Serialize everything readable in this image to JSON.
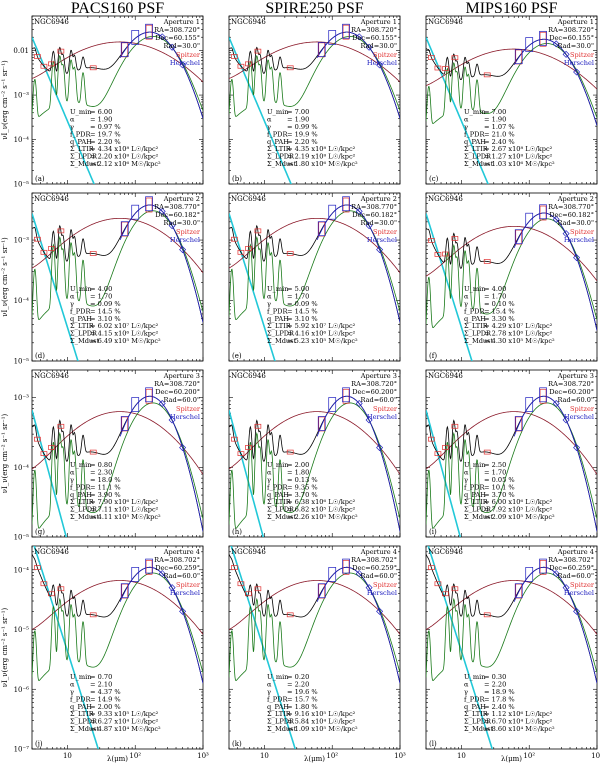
{
  "columns": [
    "PACS160 PSF",
    "SPIRE250 PSF",
    "MIPS160 PSF"
  ],
  "ylabel": "νI_ν(erg cm⁻² s⁻¹ sr⁻¹)",
  "xlabel": "λ(μm)",
  "legend": {
    "spitzer": "Spitzer",
    "herschel": "Herschel"
  },
  "colors": {
    "total": "#000000",
    "dust_model": "#1a7a1a",
    "stars": "#8b1a2a",
    "cyan": "#22c8d8",
    "spitzer": "#e03030",
    "herschel": "#2020c0"
  },
  "chart_data": {
    "type": "line",
    "galaxy": "NGC6946",
    "xscale": "log",
    "yscale": "log",
    "xlim": [
      3,
      1000
    ],
    "xticks": [
      "10",
      "10²",
      "10³"
    ],
    "ylim_rows": [
      [
        1e-05,
        0.06
      ],
      [
        1e-05,
        0.006
      ],
      [
        1e-05,
        0.0025
      ],
      [
        1e-07,
        0.00025
      ]
    ],
    "yticks_rows": [
      [
        "0.01",
        "10⁻³",
        "10⁻⁴",
        "10⁻⁵"
      ],
      [
        "10⁻³",
        "10⁻⁴",
        "10⁻⁵"
      ],
      [
        "10⁻³",
        "10⁻⁴",
        "10⁻⁵"
      ],
      [
        "10⁻⁴",
        "10⁻⁵",
        "10⁻⁶",
        "10⁻⁷"
      ]
    ],
    "stellar_peak": [
      0.018,
      0.0025,
      0.0006,
      0.0003
    ],
    "panels": [
      {
        "label": "(a)",
        "aperture": "Aperture 1",
        "ra": "RA=308.720°",
        "dec": "Dec=60.155°",
        "rad": "Rad=30.0\"",
        "params": [
          [
            "U_min",
            "6.00"
          ],
          [
            "α",
            "1.90"
          ],
          [
            "γ",
            "0.97 %"
          ],
          [
            "f_PDR",
            "19.7 %"
          ],
          [
            "q_PAH",
            "2.20 %"
          ],
          [
            "Σ_LTIR",
            "4.34 x10⁸ L☉/kpc²"
          ],
          [
            "Σ_LPDR",
            "2.20 x10⁸ L☉/kpc²"
          ],
          [
            "Σ_Mdust",
            "2.12 x10⁶ M☉/kpc²"
          ]
        ],
        "peak": 0.026
      },
      {
        "label": "(b)",
        "aperture": "Aperture 1",
        "ra": "RA=308.720°",
        "dec": "Dec=60.155°",
        "rad": "Rad=30.0\"",
        "params": [
          [
            "U_min",
            "7.00"
          ],
          [
            "α",
            "1.90"
          ],
          [
            "γ",
            "0.99 %"
          ],
          [
            "f_PDR",
            "19.9 %"
          ],
          [
            "q_PAH",
            "2.20 %"
          ],
          [
            "Σ_LTIR",
            "4.35 x10⁸ L☉/kpc²"
          ],
          [
            "Σ_LPDR",
            "2.19 x10⁸ L☉/kpc²"
          ],
          [
            "Σ_Mdust",
            "1.80 x10⁶ M☉/kpc²"
          ]
        ],
        "peak": 0.026
      },
      {
        "label": "(c)",
        "aperture": "Aperture 1",
        "ra": "RA=308.720°",
        "dec": "Dec=60.155°",
        "rad": "Rad=30.0\"",
        "params": [
          [
            "U_min",
            "7.00"
          ],
          [
            "α",
            "1.90"
          ],
          [
            "γ",
            "1.07 %"
          ],
          [
            "f_PDR",
            "21.0 %"
          ],
          [
            "q_PAH",
            "2.40 %"
          ],
          [
            "Σ_LTIR",
            "2.67 x10⁸ L☉/kpc²"
          ],
          [
            "Σ_LPDR",
            "1.27 x10⁸ L☉/kpc²"
          ],
          [
            "Σ_Mdust",
            "1.03 x10⁶ M☉/kpc²"
          ]
        ],
        "peak": 0.018
      },
      {
        "label": "(d)",
        "aperture": "Aperture 2",
        "ra": "RA=308.770°",
        "dec": "Dec=60.182°",
        "rad": "Rad=30.0\"",
        "params": [
          [
            "U_min",
            "4.00"
          ],
          [
            "α",
            "1.70"
          ],
          [
            "γ",
            "0.09 %"
          ],
          [
            "f_PDR",
            "14.5 %"
          ],
          [
            "q_PAH",
            "3.10 %"
          ],
          [
            "Σ_LTIR",
            "6.02 x10⁷ L☉/kpc²"
          ],
          [
            "Σ_LPDR",
            "4.15 x10⁶ L☉/kpc²"
          ],
          [
            "Σ_Mdust",
            "6.49 x10⁵ M☉/kpc²"
          ]
        ],
        "peak": 0.0038
      },
      {
        "label": "(e)",
        "aperture": "Aperture 2",
        "ra": "RA=308.770°",
        "dec": "Dec=60.182°",
        "rad": "Rad=30.0\"",
        "params": [
          [
            "U_min",
            "5.00"
          ],
          [
            "α",
            "1.70"
          ],
          [
            "γ",
            "0.09 %"
          ],
          [
            "f_PDR",
            "14.5 %"
          ],
          [
            "q_PAH",
            "3.10 %"
          ],
          [
            "Σ_LTIR",
            "5.92 x10⁷ L☉/kpc²"
          ],
          [
            "Σ_LPDR",
            "4.16 x10⁶ L☉/kpc²"
          ],
          [
            "Σ_Mdust",
            "5.23 x10⁵ M☉/kpc²"
          ]
        ],
        "peak": 0.0038
      },
      {
        "label": "(f)",
        "aperture": "Aperture 2",
        "ra": "RA=308.770°",
        "dec": "Dec=60.182°",
        "rad": "Rad=30.0\"",
        "params": [
          [
            "U_min",
            "4.00"
          ],
          [
            "α",
            "1.70"
          ],
          [
            "γ",
            "0.10 %"
          ],
          [
            "f_PDR",
            "15.4 %"
          ],
          [
            "q_PAH",
            "3.30 %"
          ],
          [
            "Σ_LTIR",
            "4.29 x10⁷ L☉/kpc²"
          ],
          [
            "Σ_LPDR",
            "2.78 x10⁶ L☉/kpc²"
          ],
          [
            "Σ_Mdust",
            "4.30 x10⁵ M☉/kpc²"
          ]
        ],
        "peak": 0.0028
      },
      {
        "label": "(g)",
        "aperture": "Aperture 3",
        "ra": "RA=308.720°",
        "dec": "Dec=60.200°",
        "rad": "Rad=60.0\"",
        "params": [
          [
            "U_min",
            "0.80"
          ],
          [
            "α",
            "2.30"
          ],
          [
            "γ",
            "18.0 %"
          ],
          [
            "f_PDR",
            "11.1 %"
          ],
          [
            "q_PAH",
            "3.90 %"
          ],
          [
            "Σ_LTIR",
            "7.90 x10⁶ L☉/kpc²"
          ],
          [
            "Σ_LPDR",
            "7.11 x10⁵ L☉/kpc²"
          ],
          [
            "Σ_Mdust",
            "4.11 x10⁵ M☉/kpc²"
          ]
        ],
        "peak": 0.00105
      },
      {
        "label": "(h)",
        "aperture": "Aperture 3",
        "ra": "RA=308.720°",
        "dec": "Dec=60.200°",
        "rad": "Rad=60.0\"",
        "params": [
          [
            "U_min",
            "2.00"
          ],
          [
            "α",
            "1.80"
          ],
          [
            "γ",
            "0.13 %"
          ],
          [
            "f_PDR",
            "9.35 %"
          ],
          [
            "q_PAH",
            "3.70 %"
          ],
          [
            "Σ_LTIR",
            "6.38 x10⁶ L☉/kpc²"
          ],
          [
            "Σ_LPDR",
            "6.82 x10⁵ L☉/kpc²"
          ],
          [
            "Σ_Mdust",
            "2.26 x10⁵ M☉/kpc²"
          ]
        ],
        "peak": 0.00105
      },
      {
        "label": "(i)",
        "aperture": "Aperture 3",
        "ra": "RA=308.720°",
        "dec": "Dec=60.200°",
        "rad": "Rad=60.0\"",
        "params": [
          [
            "U_min",
            "2.50"
          ],
          [
            "α",
            "1.70"
          ],
          [
            "γ",
            "0.05 %"
          ],
          [
            "f_PDR",
            "10.1 %"
          ],
          [
            "q_PAH",
            "3.70 %"
          ],
          [
            "Σ_LTIR",
            "6.00 x10⁶ L☉/kpc²"
          ],
          [
            "Σ_LPDR",
            "7.92 x10⁵ L☉/kpc²"
          ],
          [
            "Σ_Mdust",
            "2.09 x10⁵ M☉/kpc²"
          ]
        ],
        "peak": 0.00105
      },
      {
        "label": "(j)",
        "aperture": "Aperture 4",
        "ra": "RA=308.702°",
        "dec": "Dec=60.259°",
        "rad": "Rad=60.0\"",
        "params": [
          [
            "U_min",
            "0.70"
          ],
          [
            "α",
            "2.10"
          ],
          [
            "γ",
            "4.37 %"
          ],
          [
            "f_PDR",
            "14.9 %"
          ],
          [
            "q_PAH",
            "2.00 %"
          ],
          [
            "Σ_LTIR",
            "9.33 x10⁵ L☉/kpc²"
          ],
          [
            "Σ_LPDR",
            "6.27 x10⁴ L☉/kpc²"
          ],
          [
            "Σ_Mdust",
            "4.87 x10⁴ M☉/kpc²"
          ]
        ],
        "peak": 0.00011
      },
      {
        "label": "(k)",
        "aperture": "Aperture 4",
        "ra": "RA=308.702°",
        "dec": "Dec=60.259°",
        "rad": "Rad=60.0\"",
        "params": [
          [
            "U_min",
            "0.20"
          ],
          [
            "α",
            "2.20"
          ],
          [
            "γ",
            "19.6 %"
          ],
          [
            "f_PDR",
            "15.7 %"
          ],
          [
            "q_PAH",
            "1.80 %"
          ],
          [
            "Σ_LTIR",
            "9.16 x10⁵ L☉/kpc²"
          ],
          [
            "Σ_LPDR",
            "5.84 x10⁴ L☉/kpc²"
          ],
          [
            "Σ_Mdust",
            "1.09 x10⁵ M☉/kpc²"
          ]
        ],
        "peak": 0.00011
      },
      {
        "label": "(l)",
        "aperture": "Aperture 4",
        "ra": "RA=308.702°",
        "dec": "Dec=60.259°",
        "rad": "Rad=60.0\"",
        "params": [
          [
            "U_min",
            "0.30"
          ],
          [
            "α",
            "2.20"
          ],
          [
            "γ",
            "18.9 %"
          ],
          [
            "f_PDR",
            "17.8 %"
          ],
          [
            "q_PAH",
            "2.40 %"
          ],
          [
            "Σ_LTIR",
            "1.12 x10⁶ L☉/kpc²"
          ],
          [
            "Σ_LPDR",
            "6.70 x10⁴ L☉/kpc²"
          ],
          [
            "Σ_Mdust",
            "8.60 x10⁴ M☉/kpc²"
          ]
        ],
        "peak": 0.00011
      }
    ]
  }
}
